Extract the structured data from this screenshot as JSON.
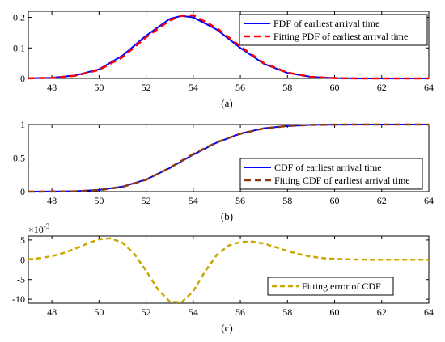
{
  "chart_data": [
    {
      "type": "line",
      "caption": "(a)",
      "xlim": [
        47,
        64
      ],
      "ylim": [
        0,
        0.22
      ],
      "xticks": [
        48,
        50,
        52,
        54,
        56,
        58,
        60,
        62,
        64
      ],
      "yticks": [
        0,
        0.1,
        0.2
      ],
      "ytick_labels": [
        "0",
        "0.1",
        "0.2"
      ],
      "legend_position": "top-right",
      "grid": false,
      "series": [
        {
          "name": "PDF of earliest arrival time",
          "color": "#0000ff",
          "style": "solid",
          "x": [
            47,
            48,
            49,
            50,
            51,
            52,
            53,
            53.5,
            54,
            55,
            56,
            57,
            58,
            59,
            60,
            61,
            62,
            63,
            64
          ],
          "y": [
            0.0005,
            0.002,
            0.01,
            0.03,
            0.075,
            0.14,
            0.195,
            0.205,
            0.2,
            0.16,
            0.1,
            0.048,
            0.018,
            0.005,
            0.001,
            0,
            0,
            0,
            0
          ]
        },
        {
          "name": "Fitting PDF of earliest arrival time",
          "color": "#ff0000",
          "style": "dashed",
          "x": [
            47,
            48,
            49,
            50,
            51,
            52,
            53,
            53.5,
            54,
            55,
            56,
            57,
            58,
            59,
            60,
            61,
            62,
            63,
            64
          ],
          "y": [
            0.0003,
            0.0015,
            0.009,
            0.028,
            0.07,
            0.135,
            0.19,
            0.205,
            0.207,
            0.165,
            0.105,
            0.05,
            0.019,
            0.005,
            0.001,
            0,
            0,
            0,
            0
          ]
        }
      ]
    },
    {
      "type": "line",
      "caption": "(b)",
      "xlim": [
        47,
        64
      ],
      "ylim": [
        0,
        1
      ],
      "xticks": [
        48,
        50,
        52,
        54,
        56,
        58,
        60,
        62,
        64
      ],
      "yticks": [
        0,
        0.5,
        1
      ],
      "ytick_labels": [
        "0",
        "0.5",
        "1"
      ],
      "legend_position": "bottom-right",
      "grid": false,
      "series": [
        {
          "name": "CDF of earliest arrival time",
          "color": "#0000ff",
          "style": "solid",
          "x": [
            47,
            48,
            49,
            50,
            51,
            52,
            53,
            54,
            55,
            56,
            57,
            58,
            59,
            60,
            61,
            62,
            63,
            64
          ],
          "y": [
            0,
            0.001,
            0.006,
            0.025,
            0.075,
            0.18,
            0.35,
            0.55,
            0.73,
            0.865,
            0.945,
            0.98,
            0.995,
            0.999,
            1,
            1,
            1,
            1
          ]
        },
        {
          "name": "Fitting CDF of earliest arrival time",
          "color": "#8b3a0f",
          "style": "dashed",
          "x": [
            47,
            48,
            49,
            50,
            51,
            52,
            53,
            54,
            55,
            56,
            57,
            58,
            59,
            60,
            61,
            62,
            63,
            64
          ],
          "y": [
            0,
            0.001,
            0.005,
            0.022,
            0.071,
            0.176,
            0.355,
            0.56,
            0.735,
            0.862,
            0.942,
            0.978,
            0.994,
            0.999,
            1,
            1,
            1,
            1
          ]
        }
      ]
    },
    {
      "type": "line",
      "caption": "(c)",
      "y_exponent": "×10",
      "y_exponent_power": "-3",
      "xlim": [
        47,
        64
      ],
      "ylim": [
        -11,
        6
      ],
      "xticks": [
        48,
        50,
        52,
        54,
        56,
        58,
        60,
        62,
        64
      ],
      "yticks": [
        -10,
        -5,
        0,
        5
      ],
      "ytick_labels": [
        "-10",
        "-5",
        "0",
        "5"
      ],
      "legend_position": "bottom-right",
      "grid": false,
      "series": [
        {
          "name": "Fitting error of CDF",
          "color": "#c8a800",
          "style": "dashed",
          "x": [
            47,
            47.5,
            48,
            48.5,
            49,
            49.5,
            50,
            50.5,
            51,
            51.5,
            52,
            52.5,
            53,
            53.5,
            54,
            54.5,
            55,
            55.5,
            56,
            56.5,
            57,
            57.5,
            58,
            58.5,
            59,
            59.5,
            60,
            61,
            62,
            63,
            64
          ],
          "y": [
            0.1,
            0.4,
            0.9,
            1.7,
            2.8,
            4.1,
            5.2,
            5.4,
            4.3,
            1.5,
            -2.8,
            -7.5,
            -10.6,
            -10.8,
            -8.0,
            -3.0,
            1.2,
            3.6,
            4.5,
            4.6,
            4.1,
            3.2,
            2.2,
            1.4,
            0.8,
            0.4,
            0.2,
            0.05,
            0,
            0,
            0
          ]
        }
      ]
    }
  ]
}
